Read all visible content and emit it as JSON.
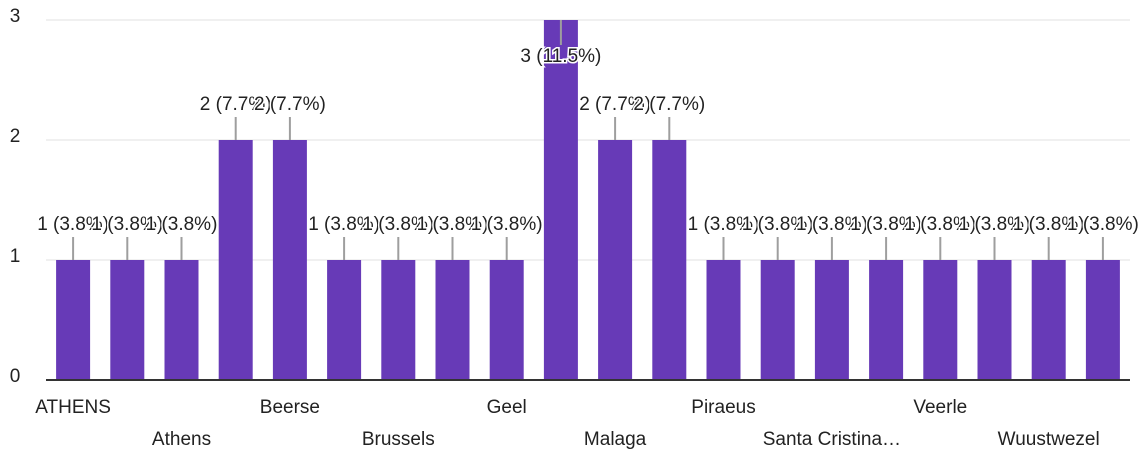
{
  "chart_data": {
    "type": "bar",
    "categories": [
      "ATHENS",
      null,
      "Athens",
      null,
      "Beerse",
      null,
      "Brussels",
      null,
      "Geel",
      null,
      "Malaga",
      null,
      "Piraeus",
      null,
      "Santa Cristina…",
      null,
      "Veerle",
      null,
      "Wuustwezel",
      null
    ],
    "values": [
      1,
      1,
      1,
      2,
      2,
      1,
      1,
      1,
      1,
      3,
      2,
      2,
      1,
      1,
      1,
      1,
      1,
      1,
      1,
      1
    ],
    "value_labels": [
      "1 (3.8%)",
      "1 (3.8%)",
      "1 (3.8%)",
      "2 (7.7%)",
      "2 (7.7%)",
      "1 (3.8%)",
      "1 (3.8%)",
      "1 (3.8%)",
      "1 (3.8%)",
      "3 (11.5%)",
      "2 (7.7%)",
      "2 (7.7%)",
      "1 (3.8%)",
      "1 (3.8%)",
      "1 (3.8%)",
      "1 (3.8%)",
      "1 (3.8%)",
      "1 (3.8%)",
      "1 (3.8%)",
      "1 (3.8%)"
    ],
    "color": "#673ab7",
    "ylim": [
      0,
      3
    ],
    "yticks": [
      0,
      1,
      2,
      3
    ],
    "grid": true
  }
}
